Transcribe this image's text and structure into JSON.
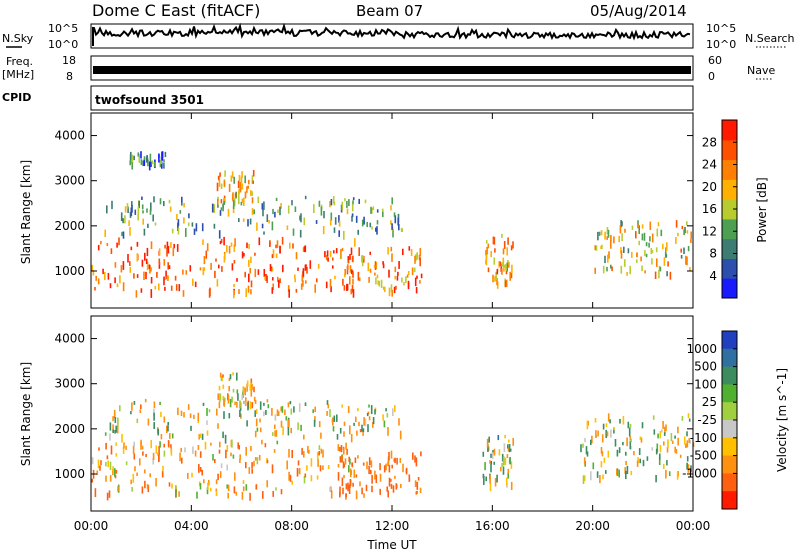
{
  "header": {
    "station": "Dome C East (fitACF)",
    "beam": "Beam 07",
    "date": "05/Aug/2014"
  },
  "strip_labels": {
    "nsky": "N.Sky",
    "nsearch": "N.Search",
    "freq": "Freq.",
    "freq_unit": "[MHz]",
    "nave": "Nave",
    "cpid": "CPID",
    "cpid_value": "twofsound 3501",
    "noise_ticks_left": [
      "10^5",
      "10^0"
    ],
    "noise_ticks_right": [
      "10^5",
      "10^0"
    ],
    "freq_ticks": [
      "18",
      "8"
    ],
    "nave_ticks": [
      "60",
      "0"
    ]
  },
  "chart_data": [
    {
      "type": "heatmap",
      "name": "power",
      "xlabel": "",
      "ylabel": "Slant Range [km]",
      "x_ticks": [
        "00:00",
        "04:00",
        "08:00",
        "12:00",
        "16:00",
        "20:00",
        "00:00"
      ],
      "y_ticks": [
        1000,
        2000,
        3000,
        4000
      ],
      "xlim_hours": [
        0,
        24
      ],
      "ylim_km": [
        180,
        4500
      ],
      "colorbar": {
        "label": "Power [dB]",
        "ticks": [
          4,
          8,
          12,
          16,
          20,
          24,
          28
        ],
        "range": [
          0,
          32
        ],
        "colors": [
          "#1a1aff",
          "#2c4fae",
          "#3c7c72",
          "#4d9f52",
          "#b8cc30",
          "#ffb000",
          "#ff8000",
          "#ff5000",
          "#ff1a00"
        ]
      },
      "scatter_regions": [
        {
          "t0": 0.0,
          "t1": 10.6,
          "r0": 500,
          "r1": 1700,
          "level": 26
        },
        {
          "t0": 5.0,
          "t1": 6.5,
          "r0": 2500,
          "r1": 3200,
          "level": 20
        },
        {
          "t0": 9.8,
          "t1": 13.2,
          "r0": 500,
          "r1": 1500,
          "level": 24
        },
        {
          "t0": 15.6,
          "t1": 16.8,
          "r0": 700,
          "r1": 1800,
          "level": 22
        },
        {
          "t0": 20.0,
          "t1": 24.0,
          "r0": 900,
          "r1": 2100,
          "level": 18
        },
        {
          "t0": 0.5,
          "t1": 12.5,
          "r0": 1800,
          "r1": 2600,
          "level": 12
        },
        {
          "t0": 1.5,
          "t1": 3.0,
          "r0": 3300,
          "r1": 3600,
          "level": 8
        }
      ]
    },
    {
      "type": "heatmap",
      "name": "velocity",
      "xlabel": "Time UT",
      "ylabel": "Slant Range [km]",
      "x_ticks": [
        "00:00",
        "04:00",
        "08:00",
        "12:00",
        "16:00",
        "20:00",
        "00:00"
      ],
      "y_ticks": [
        1000,
        2000,
        3000,
        4000
      ],
      "xlim_hours": [
        0,
        24
      ],
      "ylim_km": [
        180,
        4500
      ],
      "colorbar": {
        "label": "Velocity [m s^-1]",
        "ticks": [
          "1000",
          "500",
          "100",
          "25",
          "-25",
          "-100",
          "-500",
          "-1000"
        ],
        "colors": [
          "#2040c0",
          "#3070a0",
          "#3c8c60",
          "#50b030",
          "#a0d040",
          "#c8c8c8",
          "#ffc000",
          "#ff9010",
          "#ff6010",
          "#ff1a00"
        ]
      },
      "scatter_regions": [
        {
          "t0": 0.0,
          "t1": 10.6,
          "r0": 500,
          "r1": 1700,
          "level": -200
        },
        {
          "t0": 5.0,
          "t1": 6.5,
          "r0": 2500,
          "r1": 3200,
          "level": -150
        },
        {
          "t0": 9.8,
          "t1": 13.2,
          "r0": 500,
          "r1": 1500,
          "level": -400
        },
        {
          "t0": 15.6,
          "t1": 16.8,
          "r0": 700,
          "r1": 1800,
          "level": 80
        },
        {
          "t0": 19.5,
          "t1": 24.0,
          "r0": 900,
          "r1": 2300,
          "level": 0
        },
        {
          "t0": 0.5,
          "t1": 12.5,
          "r0": 1800,
          "r1": 2600,
          "level": -60
        }
      ]
    }
  ],
  "colors": {
    "axis": "#000000",
    "background": "#ffffff"
  }
}
